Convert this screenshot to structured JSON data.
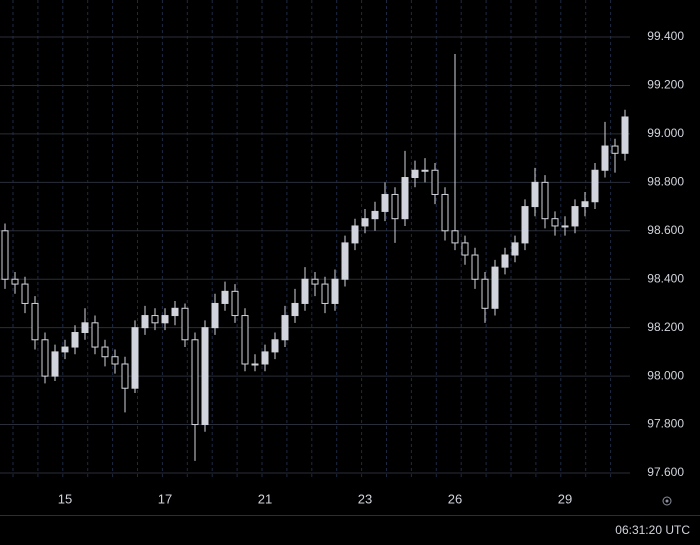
{
  "chart_data": {
    "type": "candlestick",
    "color": "#d1d4dc",
    "grid": true,
    "categories": [
      null,
      null,
      null,
      null,
      null,
      null,
      "15",
      null,
      null,
      null,
      null,
      null,
      null,
      null,
      null,
      null,
      "17",
      null,
      null,
      null,
      null,
      null,
      null,
      null,
      null,
      null,
      "21",
      null,
      null,
      null,
      null,
      null,
      null,
      null,
      null,
      null,
      "23",
      null,
      null,
      null,
      null,
      null,
      null,
      null,
      null,
      "26",
      null,
      null,
      null,
      null,
      null,
      null,
      null,
      null,
      null,
      null,
      "29",
      null,
      null,
      null,
      null,
      null,
      null
    ],
    "open": [
      98.6,
      98.4,
      98.38,
      98.3,
      98.15,
      98.0,
      98.1,
      98.12,
      98.18,
      98.22,
      98.12,
      98.08,
      98.05,
      97.95,
      98.2,
      98.25,
      98.22,
      98.25,
      98.28,
      98.15,
      97.8,
      98.2,
      98.3,
      98.35,
      98.25,
      98.05,
      98.05,
      98.1,
      98.15,
      98.25,
      98.3,
      98.4,
      98.38,
      98.3,
      98.4,
      98.55,
      98.62,
      98.65,
      98.68,
      98.75,
      98.65,
      98.82,
      98.85,
      98.85,
      98.75,
      98.6,
      98.55,
      98.5,
      98.4,
      98.28,
      98.45,
      98.5,
      98.55,
      98.7,
      98.8,
      98.65,
      98.62,
      98.62,
      98.7,
      98.72,
      98.85,
      98.95,
      98.92
    ],
    "high": [
      98.63,
      98.43,
      98.41,
      98.33,
      98.18,
      98.13,
      98.15,
      98.21,
      98.28,
      98.25,
      98.15,
      98.11,
      98.08,
      98.23,
      98.29,
      98.28,
      98.28,
      98.31,
      98.3,
      98.18,
      98.23,
      98.34,
      98.39,
      98.38,
      98.28,
      98.09,
      98.13,
      98.18,
      98.29,
      98.36,
      98.45,
      98.43,
      98.41,
      98.44,
      98.58,
      98.65,
      98.69,
      98.72,
      98.8,
      98.78,
      98.93,
      98.89,
      98.9,
      98.88,
      98.78,
      99.33,
      98.58,
      98.53,
      98.43,
      98.48,
      98.53,
      98.58,
      98.73,
      98.86,
      98.83,
      98.68,
      98.66,
      98.73,
      98.76,
      98.88,
      99.05,
      98.98,
      99.1
    ],
    "low": [
      98.36,
      98.34,
      98.26,
      98.11,
      97.97,
      97.98,
      98.07,
      98.09,
      98.15,
      98.09,
      98.04,
      98.01,
      97.85,
      97.93,
      98.17,
      98.19,
      98.19,
      98.21,
      98.12,
      97.65,
      97.77,
      98.17,
      98.27,
      98.22,
      98.02,
      98.02,
      98.02,
      98.07,
      98.12,
      98.22,
      98.27,
      98.33,
      98.26,
      98.27,
      98.37,
      98.52,
      98.59,
      98.6,
      98.64,
      98.55,
      98.62,
      98.78,
      98.8,
      98.71,
      98.56,
      98.52,
      98.46,
      98.36,
      98.22,
      98.25,
      98.42,
      98.47,
      98.52,
      98.66,
      98.61,
      98.58,
      98.58,
      98.59,
      98.66,
      98.69,
      98.82,
      98.84,
      98.89
    ],
    "close": [
      98.4,
      98.38,
      98.3,
      98.15,
      98.0,
      98.1,
      98.12,
      98.18,
      98.22,
      98.12,
      98.08,
      98.05,
      97.95,
      98.2,
      98.25,
      98.22,
      98.25,
      98.28,
      98.15,
      97.8,
      98.2,
      98.3,
      98.35,
      98.25,
      98.05,
      98.05,
      98.1,
      98.15,
      98.25,
      98.3,
      98.4,
      98.38,
      98.3,
      98.4,
      98.55,
      98.62,
      98.65,
      98.68,
      98.75,
      98.65,
      98.82,
      98.85,
      98.85,
      98.75,
      98.6,
      98.55,
      98.5,
      98.4,
      98.28,
      98.45,
      98.5,
      98.55,
      98.7,
      98.8,
      98.65,
      98.62,
      98.62,
      98.7,
      98.72,
      98.85,
      98.95,
      98.92,
      99.07
    ],
    "ylim": [
      97.571,
      99.553
    ],
    "yticks": [
      {
        "value": 97.6,
        "label": "97.600"
      },
      {
        "value": 97.8,
        "label": "97.800"
      },
      {
        "value": 98.0,
        "label": "98.000"
      },
      {
        "value": 98.2,
        "label": "98.200"
      },
      {
        "value": 98.4,
        "label": "98.400"
      },
      {
        "value": 98.6,
        "label": "98.600"
      },
      {
        "value": 98.8,
        "label": "98.800"
      },
      {
        "value": 99.0,
        "label": "99.000"
      },
      {
        "value": 99.2,
        "label": "99.200"
      },
      {
        "value": 99.4,
        "label": "99.400"
      }
    ]
  },
  "status_bar": {
    "time": "06:31:20 UTC"
  }
}
